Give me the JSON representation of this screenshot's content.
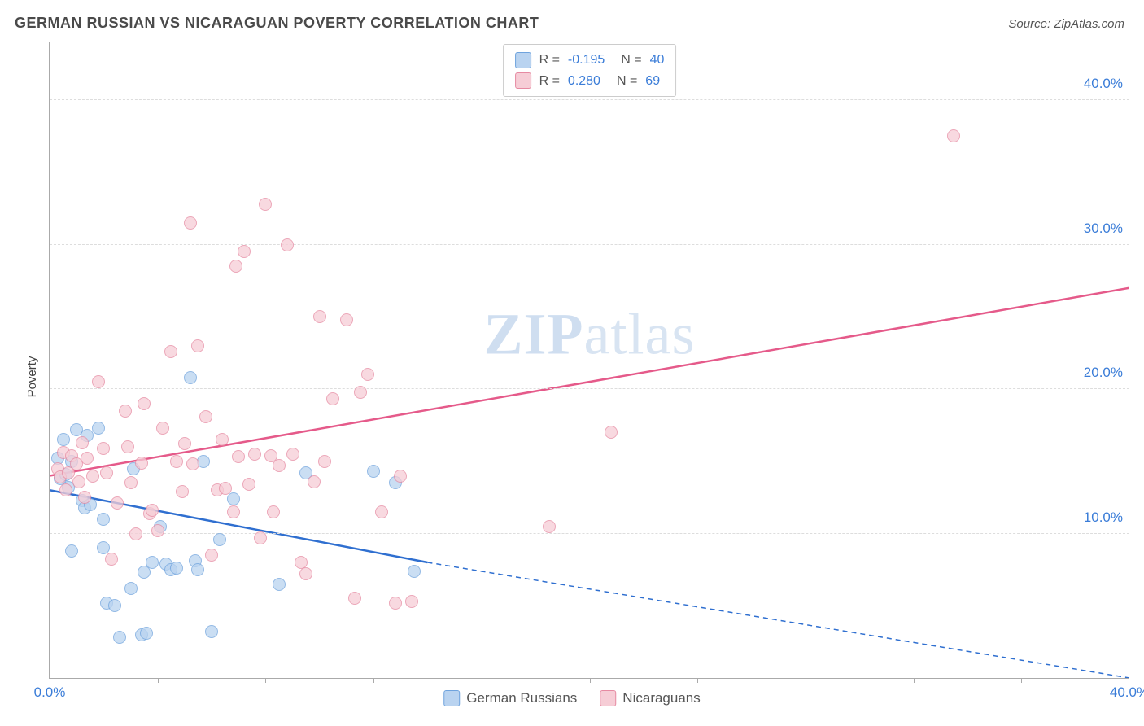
{
  "title": "GERMAN RUSSIAN VS NICARAGUAN POVERTY CORRELATION CHART",
  "source_prefix": "Source: ",
  "source_name": "ZipAtlas.com",
  "watermark_zip": "ZIP",
  "watermark_atlas": "atlas",
  "chart": {
    "type": "scatter",
    "ylabel": "Poverty",
    "xlim": [
      0,
      40
    ],
    "ylim": [
      0,
      44
    ],
    "x_ticks": [
      0,
      40
    ],
    "x_tick_labels": [
      "0.0%",
      "40.0%"
    ],
    "x_minor_ticks": [
      4,
      8,
      12,
      16,
      20,
      24,
      28,
      32,
      36
    ],
    "y_ticks": [
      10,
      20,
      30,
      40
    ],
    "y_tick_labels": [
      "10.0%",
      "20.0%",
      "30.0%",
      "40.0%"
    ],
    "background_color": "#ffffff",
    "grid_color": "#dddddd",
    "tick_label_color": "#3b7dd8",
    "axis_color": "#aaaaaa",
    "marker_radius": 8,
    "marker_border_width": 1.5,
    "series": [
      {
        "name": "German Russians",
        "legend_label": "German Russians",
        "fill_color": "#b9d3f0",
        "stroke_color": "#6fa3dd",
        "r_label": "R = ",
        "r_value": "-0.195",
        "n_label": "N = ",
        "n_value": "40",
        "trend": {
          "x1": 0,
          "y1": 13.0,
          "x2_solid": 14,
          "y2_solid": 8.0,
          "x2": 40,
          "y2": 0.0,
          "color": "#2f6fd0",
          "width": 2.5
        },
        "points": [
          [
            0.3,
            15.2
          ],
          [
            0.4,
            13.8
          ],
          [
            0.5,
            16.5
          ],
          [
            0.6,
            14.1
          ],
          [
            0.7,
            13.2
          ],
          [
            0.8,
            15.0
          ],
          [
            0.8,
            8.8
          ],
          [
            1.0,
            17.2
          ],
          [
            1.2,
            12.3
          ],
          [
            1.3,
            11.8
          ],
          [
            1.4,
            16.8
          ],
          [
            1.5,
            12.0
          ],
          [
            1.8,
            17.3
          ],
          [
            2.0,
            11.0
          ],
          [
            2.0,
            9.0
          ],
          [
            2.1,
            5.2
          ],
          [
            2.4,
            5.0
          ],
          [
            2.6,
            2.8
          ],
          [
            3.0,
            6.2
          ],
          [
            3.1,
            14.5
          ],
          [
            3.4,
            3.0
          ],
          [
            3.5,
            7.3
          ],
          [
            3.6,
            3.1
          ],
          [
            3.8,
            8.0
          ],
          [
            4.1,
            10.5
          ],
          [
            4.3,
            7.9
          ],
          [
            4.5,
            7.5
          ],
          [
            4.7,
            7.6
          ],
          [
            5.2,
            20.8
          ],
          [
            5.4,
            8.1
          ],
          [
            5.5,
            7.5
          ],
          [
            5.7,
            15.0
          ],
          [
            6.0,
            3.2
          ],
          [
            6.3,
            9.6
          ],
          [
            6.8,
            12.4
          ],
          [
            8.5,
            6.5
          ],
          [
            9.5,
            14.2
          ],
          [
            12.0,
            14.3
          ],
          [
            12.8,
            13.5
          ],
          [
            13.5,
            7.4
          ]
        ]
      },
      {
        "name": "Nicaraguans",
        "legend_label": "Nicaraguans",
        "fill_color": "#f6cdd6",
        "stroke_color": "#e68aa2",
        "r_label": "R = ",
        "r_value": "0.280",
        "n_label": "N = ",
        "n_value": "69",
        "trend": {
          "x1": 0,
          "y1": 14.0,
          "x2_solid": 40,
          "y2_solid": 27.0,
          "x2": 40,
          "y2": 27.0,
          "color": "#e55a8a",
          "width": 2.5
        },
        "points": [
          [
            0.3,
            14.5
          ],
          [
            0.4,
            13.9
          ],
          [
            0.5,
            15.6
          ],
          [
            0.6,
            13.0
          ],
          [
            0.7,
            14.2
          ],
          [
            0.8,
            15.4
          ],
          [
            1.0,
            14.8
          ],
          [
            1.1,
            13.6
          ],
          [
            1.2,
            16.3
          ],
          [
            1.3,
            12.5
          ],
          [
            1.4,
            15.2
          ],
          [
            1.6,
            14.0
          ],
          [
            1.8,
            20.5
          ],
          [
            2.0,
            15.9
          ],
          [
            2.1,
            14.2
          ],
          [
            2.3,
            8.2
          ],
          [
            2.5,
            12.1
          ],
          [
            2.8,
            18.5
          ],
          [
            2.9,
            16.0
          ],
          [
            3.0,
            13.5
          ],
          [
            3.2,
            10.0
          ],
          [
            3.4,
            14.9
          ],
          [
            3.5,
            19.0
          ],
          [
            3.7,
            11.4
          ],
          [
            3.8,
            11.6
          ],
          [
            4.0,
            10.2
          ],
          [
            4.2,
            17.3
          ],
          [
            4.5,
            22.6
          ],
          [
            4.7,
            15.0
          ],
          [
            4.9,
            12.9
          ],
          [
            5.0,
            16.2
          ],
          [
            5.2,
            31.5
          ],
          [
            5.3,
            14.8
          ],
          [
            5.5,
            23.0
          ],
          [
            5.8,
            18.1
          ],
          [
            6.0,
            8.5
          ],
          [
            6.2,
            13.0
          ],
          [
            6.4,
            16.5
          ],
          [
            6.5,
            13.1
          ],
          [
            6.8,
            11.5
          ],
          [
            7.0,
            15.3
          ],
          [
            7.2,
            29.5
          ],
          [
            7.4,
            13.4
          ],
          [
            7.6,
            15.5
          ],
          [
            7.8,
            9.7
          ],
          [
            8.0,
            32.8
          ],
          [
            8.2,
            15.4
          ],
          [
            8.3,
            11.5
          ],
          [
            8.5,
            14.7
          ],
          [
            8.8,
            30.0
          ],
          [
            9.0,
            15.5
          ],
          [
            9.3,
            8.0
          ],
          [
            9.5,
            7.2
          ],
          [
            9.8,
            13.6
          ],
          [
            10.0,
            25.0
          ],
          [
            10.2,
            15.0
          ],
          [
            10.5,
            19.3
          ],
          [
            11.0,
            24.8
          ],
          [
            11.3,
            5.5
          ],
          [
            11.5,
            19.8
          ],
          [
            11.8,
            21.0
          ],
          [
            12.3,
            11.5
          ],
          [
            12.8,
            5.2
          ],
          [
            13.0,
            14.0
          ],
          [
            13.4,
            5.3
          ],
          [
            18.5,
            10.5
          ],
          [
            20.8,
            17.0
          ],
          [
            33.5,
            37.5
          ],
          [
            6.9,
            28.5
          ]
        ]
      }
    ]
  }
}
